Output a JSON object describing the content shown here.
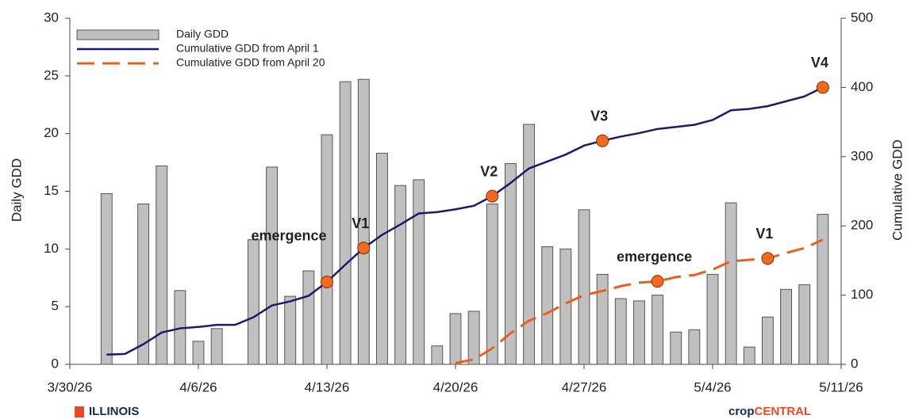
{
  "chart_data": {
    "type": "combo",
    "y_label": "Daily GDD",
    "y2_label": "Cumulative GDD",
    "xlim": [
      "3/30/26",
      "5/11/26"
    ],
    "xticks": [
      "3/30/26",
      "4/6/26",
      "4/13/26",
      "4/20/26",
      "4/27/26",
      "5/4/26",
      "5/11/26"
    ],
    "ylim": [
      0,
      30
    ],
    "yticks": [
      0,
      5,
      10,
      15,
      20,
      25,
      30
    ],
    "y2lim": [
      0,
      500
    ],
    "y2ticks": [
      0,
      100,
      200,
      300,
      400,
      500
    ],
    "legend": "upper left",
    "x": [
      "4/1/26",
      "4/2/26",
      "4/3/26",
      "4/4/26",
      "4/5/26",
      "4/6/26",
      "4/7/26",
      "4/8/26",
      "4/9/26",
      "4/10/26",
      "4/11/26",
      "4/12/26",
      "4/13/26",
      "4/14/26",
      "4/15/26",
      "4/16/26",
      "4/17/26",
      "4/18/26",
      "4/19/26",
      "4/20/26",
      "4/21/26",
      "4/22/26",
      "4/23/26",
      "4/24/26",
      "4/25/26",
      "4/26/26",
      "4/27/26",
      "4/28/26",
      "4/29/26",
      "4/30/26",
      "5/1/26",
      "5/2/26",
      "5/3/26",
      "5/4/26",
      "5/5/26",
      "5/6/26",
      "5/7/26",
      "5/8/26",
      "5/9/26",
      "5/10/26"
    ],
    "series": [
      {
        "name": "Daily GDD",
        "type": "bar",
        "color": "#c0c0c0",
        "values": [
          14.8,
          0,
          13.9,
          17.2,
          6.4,
          2.0,
          3.1,
          0,
          10.8,
          17.1,
          5.9,
          8.1,
          19.9,
          24.5,
          24.7,
          18.3,
          15.5,
          16.0,
          1.6,
          4.4,
          4.6,
          13.9,
          17.4,
          20.8,
          10.2,
          10.0,
          13.4,
          7.8,
          5.7,
          5.5,
          6.0,
          2.8,
          3.0,
          7.8,
          14.0,
          1.5,
          4.1,
          6.5,
          6.9,
          13.0
        ]
      },
      {
        "name": "Cumulative GDD from April 1",
        "type": "line",
        "axis": "y2",
        "color": "#1a1a6e",
        "dash": false,
        "values": [
          14,
          15,
          29,
          46,
          52,
          54,
          57,
          57,
          68,
          85,
          91,
          99,
          119,
          144,
          168,
          187,
          202,
          218,
          220,
          224,
          229,
          243,
          262,
          283,
          293,
          303,
          316,
          323,
          329,
          334,
          340,
          343,
          346,
          353,
          367,
          369,
          373,
          380,
          387,
          400
        ],
        "markers": [
          {
            "x": "4/13/26",
            "label": "emergence"
          },
          {
            "x": "4/15/26",
            "label": "V1"
          },
          {
            "x": "4/22/26",
            "label": "V2"
          },
          {
            "x": "4/28/26",
            "label": "V3"
          },
          {
            "x": "5/10/26",
            "label": "V4"
          }
        ]
      },
      {
        "name": "Cumulative GDD from April 20",
        "type": "line",
        "axis": "y2",
        "color": "#e8601c",
        "dash": true,
        "values": [
          null,
          null,
          null,
          null,
          null,
          null,
          null,
          null,
          null,
          null,
          null,
          null,
          null,
          null,
          null,
          null,
          null,
          null,
          null,
          2,
          7,
          23,
          45,
          63,
          74,
          88,
          100,
          106,
          113,
          118,
          120,
          126,
          129,
          137,
          149,
          151,
          153,
          161,
          168,
          180
        ],
        "markers": [
          {
            "x": "5/1/26",
            "label": "emergence"
          },
          {
            "x": "5/7/26",
            "label": "V1"
          }
        ]
      }
    ],
    "marker_color": "#f26a21"
  },
  "logos": {
    "left": "ILLINOIS",
    "right_a": "crop",
    "right_b": "CENTRAL"
  }
}
